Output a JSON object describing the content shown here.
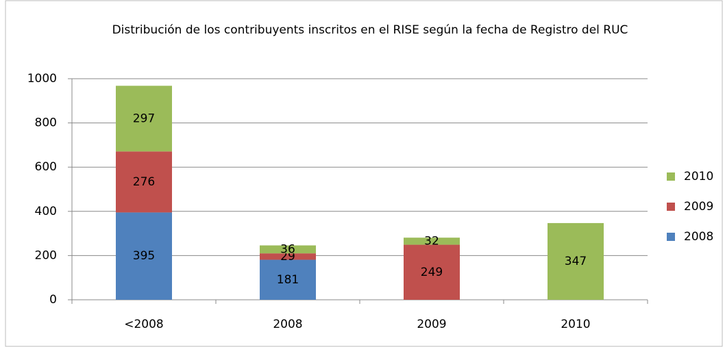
{
  "chart_data": {
    "type": "stacked_bar",
    "title": "Distribución de los contribuyents inscritos en el RISE según la fecha de Registro del RUC",
    "categories": [
      "<2008",
      "2008",
      "2009",
      "2010"
    ],
    "series": [
      {
        "name": "2008",
        "color": "#4f81bd",
        "values": [
          395,
          181,
          null,
          null
        ]
      },
      {
        "name": "2009",
        "color": "#c0504d",
        "values": [
          276,
          29,
          249,
          null
        ]
      },
      {
        "name": "2010",
        "color": "#9bbb59",
        "values": [
          297,
          36,
          32,
          347
        ]
      }
    ],
    "ylim": [
      0,
      1000
    ],
    "yticks": [
      0,
      200,
      400,
      600,
      800,
      1000
    ],
    "grid": true,
    "legend": "right"
  }
}
